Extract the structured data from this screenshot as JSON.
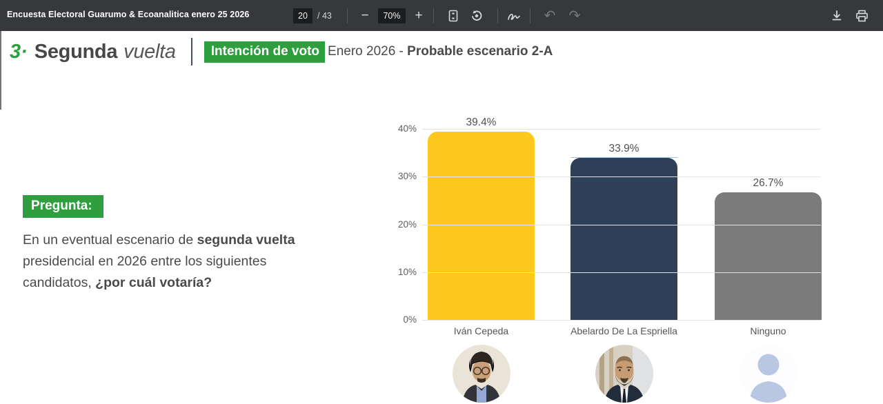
{
  "toolbar": {
    "title": "Encuesta Electoral Guarumo & Ecoanalitica enero 25 2026",
    "page_current": "20",
    "page_total": "/ 43",
    "zoom_level": "70%",
    "minus_label": "−",
    "plus_label": "+",
    "undo_glyph": "↶",
    "redo_glyph": "↷"
  },
  "header": {
    "section_number": "3·",
    "section_title": "Segunda",
    "section_title_italic": "vuelta",
    "badge": "Intención de voto",
    "subtitle_regular": "Enero 2026 - ",
    "subtitle_bold": "Probable escenario 2-A"
  },
  "question": {
    "badge": "Pregunta:",
    "line1_regular": "En un eventual escenario de ",
    "line1_bold": "segunda vuelta",
    "line2": "presidencial en 2026 entre los siguientes",
    "line3_regular": "candidatos, ",
    "line3_bold": "¿por cuál votaría?"
  },
  "chart_data": {
    "type": "bar",
    "categories": [
      "Iván Cepeda",
      "Abelardo De La Espriella",
      "Ninguno"
    ],
    "values": [
      39.4,
      33.9,
      26.7
    ],
    "value_labels": [
      "39.4%",
      "33.9%",
      "26.7%"
    ],
    "bar_colors": [
      "#FFC81E",
      "#2E3F58",
      "#7B7B7B"
    ],
    "y_ticks": [
      "40%",
      "30%",
      "20%",
      "10%",
      "0%"
    ],
    "ylim": [
      0,
      40
    ],
    "grid": true,
    "legend": false,
    "title": "",
    "accent_line_color": "#9FC3DC",
    "avatars": [
      "ivan-cepeda-photo",
      "abelardo-de-la-espriella-photo",
      "ninguno-silhouette"
    ]
  },
  "colors": {
    "accent_green": "#2F9E3F",
    "toolbar_bg": "#37383B",
    "bar_yellow": "#FFC81E",
    "bar_navy": "#2E3F58",
    "bar_gray": "#7B7B7B"
  }
}
